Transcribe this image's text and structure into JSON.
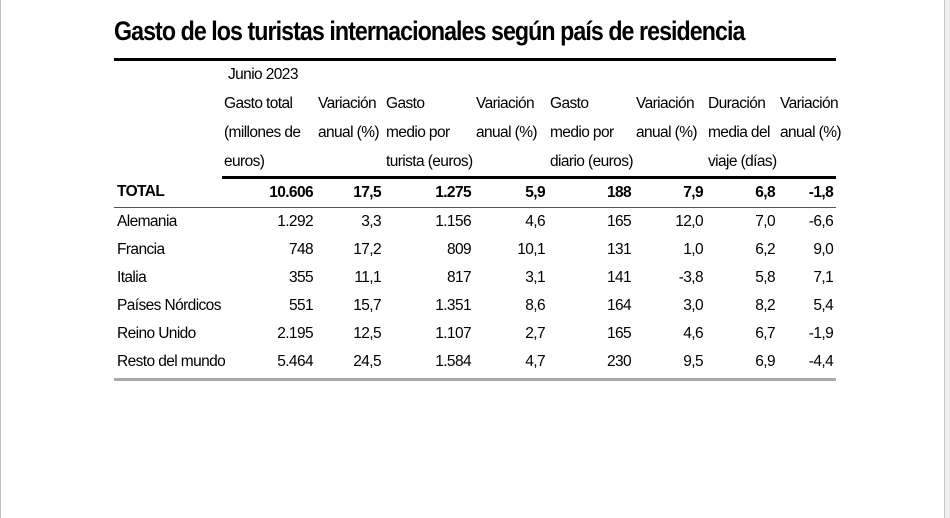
{
  "title": "Gasto de los turistas internacionales según país de residencia",
  "period": "Junio 2023",
  "columns": [
    {
      "lines": [
        "Gasto total",
        "(millones de",
        "euros)"
      ]
    },
    {
      "lines": [
        "Variación",
        "anual (%)"
      ]
    },
    {
      "lines": [
        "Gasto",
        "medio por",
        "turista (euros)"
      ]
    },
    {
      "lines": [
        "Variación",
        "anual (%)"
      ]
    },
    {
      "lines": [
        "Gasto",
        "medio por",
        "diario (euros)"
      ]
    },
    {
      "lines": [
        "Variación",
        "anual (%)"
      ]
    },
    {
      "lines": [
        "Duración",
        "media del",
        "viaje (días)"
      ]
    },
    {
      "lines": [
        "Variación",
        "anual (%)"
      ]
    }
  ],
  "total": {
    "label": "TOTAL",
    "values": [
      "10.606",
      "17,5",
      "1.275",
      "5,9",
      "188",
      "7,9",
      "6,8",
      "-1,8"
    ]
  },
  "rows": [
    {
      "label": "Alemania",
      "values": [
        "1.292",
        "3,3",
        "1.156",
        "4,6",
        "165",
        "12,0",
        "7,0",
        "-6,6"
      ]
    },
    {
      "label": "Francia",
      "values": [
        "748",
        "17,2",
        "809",
        "10,1",
        "131",
        "1,0",
        "6,2",
        "9,0"
      ]
    },
    {
      "label": "Italia",
      "values": [
        "355",
        "11,1",
        "817",
        "3,1",
        "141",
        "-3,8",
        "5,8",
        "7,1"
      ]
    },
    {
      "label": "Países Nórdicos",
      "values": [
        "551",
        "15,7",
        "1.351",
        "8,6",
        "164",
        "3,0",
        "8,2",
        "5,4"
      ]
    },
    {
      "label": "Reino Unido",
      "values": [
        "2.195",
        "12,5",
        "1.107",
        "2,7",
        "165",
        "4,6",
        "6,7",
        "-1,9"
      ]
    },
    {
      "label": "Resto del mundo",
      "values": [
        "5.464",
        "24,5",
        "1.584",
        "4,7",
        "230",
        "9,5",
        "6,9",
        "-4,4"
      ]
    }
  ]
}
